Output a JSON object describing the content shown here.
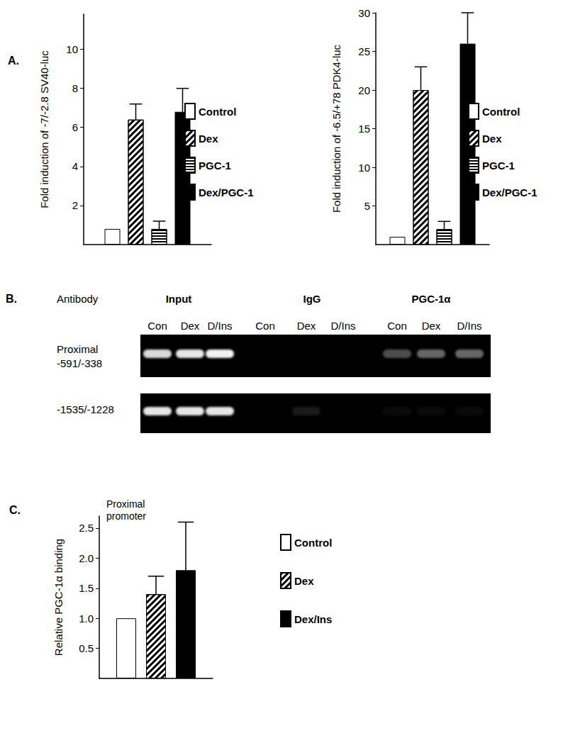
{
  "chart_data": [
    {
      "type": "bar",
      "title": "A.",
      "y_label": "Fold induction of -7/-2.8 SV40-luc",
      "categories": [
        null
      ],
      "series": [
        {
          "name": "Control",
          "color": "#ffffff",
          "values": [
            0.8
          ],
          "errors": [
            null
          ]
        },
        {
          "name": "Dex",
          "color": "#ffffff",
          "values": [
            6.4
          ],
          "errors": [
            0.8
          ]
        },
        {
          "name": "PGC-1",
          "color": "#ffffff",
          "values": [
            0.8
          ],
          "errors": [
            0.4
          ]
        },
        {
          "name": "Dex/PGC-1",
          "color": "#000000",
          "values": [
            6.8
          ],
          "errors": [
            1.2
          ]
        }
      ],
      "ylim": [
        0,
        11.8
      ],
      "yticks": [
        2,
        4,
        6,
        8,
        10
      ],
      "grid": false,
      "legend": "right"
    },
    {
      "type": "bar",
      "y_label": "Fold induction of -6.5/+78 PDK4-luc",
      "categories": [
        null
      ],
      "series": [
        {
          "name": "Control",
          "color": "#ffffff",
          "values": [
            1
          ],
          "errors": [
            null
          ]
        },
        {
          "name": "Dex",
          "color": "#ffffff",
          "values": [
            20
          ],
          "errors": [
            3
          ]
        },
        {
          "name": "PGC-1",
          "color": "#ffffff",
          "values": [
            2
          ],
          "errors": [
            1
          ]
        },
        {
          "name": "Dex/PGC-1",
          "color": "#000000",
          "values": [
            26
          ],
          "errors": [
            4
          ]
        }
      ],
      "ylim": [
        0,
        30
      ],
      "yticks": [
        5,
        10,
        15,
        20,
        25,
        30
      ],
      "grid": false,
      "legend": "right"
    },
    {
      "type": "bar",
      "title": "C.",
      "y_label": "Relative PGC-1α binding",
      "annotations": [
        "Proximal\npromoter"
      ],
      "categories": [
        null
      ],
      "series": [
        {
          "name": "Control",
          "color": "#ffffff",
          "values": [
            1.0
          ],
          "errors": [
            null
          ]
        },
        {
          "name": "Dex",
          "color": "#ffffff",
          "values": [
            1.4
          ],
          "errors": [
            0.3
          ]
        },
        {
          "name": "Dex/Ins",
          "color": "#000000",
          "values": [
            1.8
          ],
          "errors": [
            0.8
          ]
        }
      ],
      "ylim": [
        0,
        2.7
      ],
      "yticks": [
        {
          "value": 0.5,
          "label": "0.5"
        },
        {
          "value": 1,
          "label": "1.0"
        },
        {
          "value": 1.5,
          "label": "1.5"
        },
        {
          "value": 2,
          "label": "2.0"
        },
        {
          "value": 2.5,
          "label": "2.5"
        }
      ],
      "grid": false,
      "legend": "right"
    }
  ],
  "gel": {
    "title": "B.",
    "row_header": "Antibody",
    "groups": [
      {
        "label": "Input",
        "lanes": [
          "Con",
          "Dex",
          "D/Ins"
        ]
      },
      {
        "label": "IgG",
        "lanes": [
          "Con",
          "Dex",
          "D/Ins"
        ]
      },
      {
        "label": "PGC-1α",
        "lanes": [
          "Con",
          "Dex",
          "D/Ins"
        ]
      }
    ],
    "rows": [
      {
        "label": [
          "Proximal",
          "-591/-338"
        ],
        "bands": [
          0.85,
          0.9,
          0.95,
          0,
          0,
          0,
          0.3,
          0.4,
          0.4
        ]
      },
      {
        "label": [
          "-1535/-1228"
        ],
        "bands": [
          0.9,
          0.9,
          0.9,
          0,
          0.1,
          0,
          0.04,
          0.04,
          0.04
        ]
      }
    ]
  }
}
